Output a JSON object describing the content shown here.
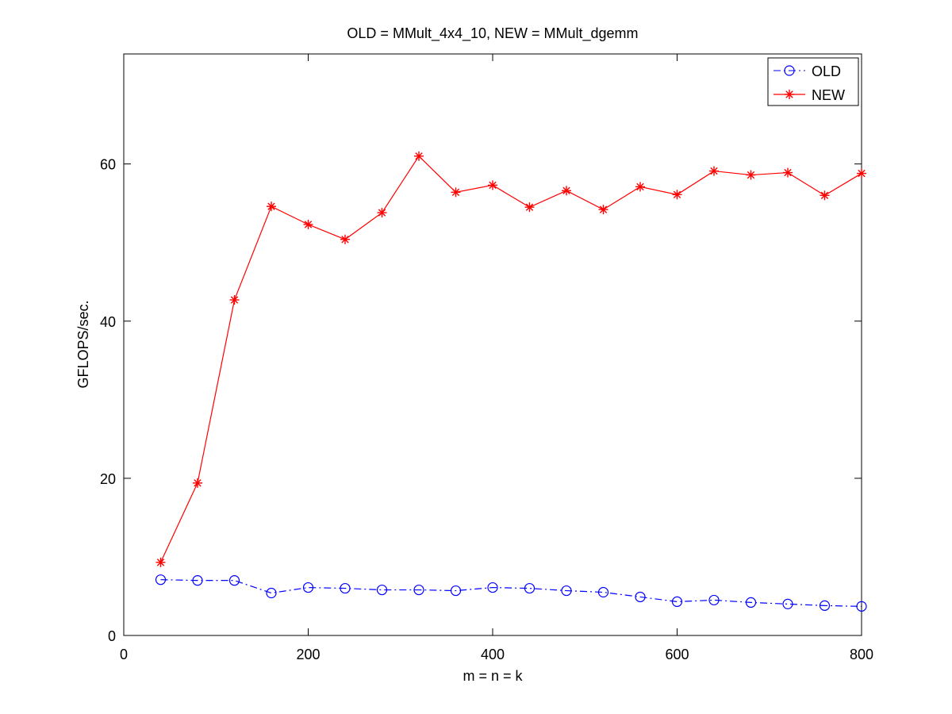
{
  "chart_data": {
    "type": "line",
    "title": "OLD = MMult_4x4_10, NEW = MMult_dgemm",
    "xlabel": "m = n = k",
    "ylabel": "GFLOPS/sec.",
    "xlim": [
      0,
      800
    ],
    "ylim": [
      0,
      74
    ],
    "xticks": [
      0,
      200,
      400,
      600,
      800
    ],
    "yticks": [
      0,
      20,
      40,
      60
    ],
    "grid": false,
    "legend_position": "top-right",
    "x": [
      40,
      80,
      120,
      160,
      200,
      240,
      280,
      320,
      360,
      400,
      440,
      480,
      520,
      560,
      600,
      640,
      680,
      720,
      760,
      800
    ],
    "series": [
      {
        "name": "OLD",
        "color": "#0000ff",
        "line_style": "dash-dot",
        "marker": "circle",
        "values": [
          7.1,
          7.0,
          7.0,
          5.4,
          6.1,
          6.0,
          5.8,
          5.8,
          5.7,
          6.1,
          6.0,
          5.7,
          5.5,
          4.9,
          4.3,
          4.5,
          4.2,
          4.0,
          3.8,
          3.7
        ]
      },
      {
        "name": "NEW",
        "color": "#ff0000",
        "line_style": "solid",
        "marker": "asterisk",
        "values": [
          9.3,
          19.4,
          42.7,
          54.6,
          52.3,
          50.4,
          53.8,
          61.0,
          56.4,
          57.3,
          54.5,
          56.6,
          54.2,
          57.1,
          56.1,
          59.1,
          58.6,
          58.9,
          56.0,
          58.8
        ]
      }
    ]
  }
}
